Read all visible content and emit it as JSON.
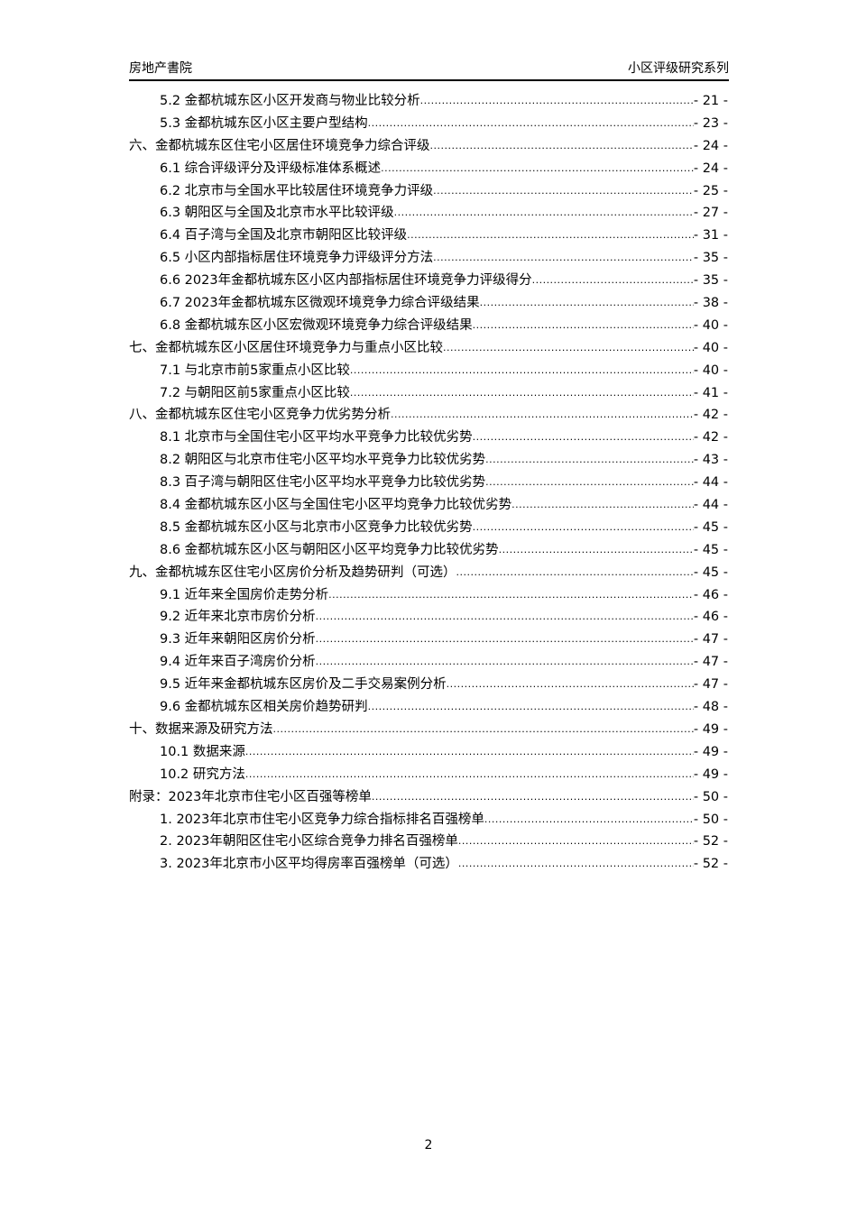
{
  "header": {
    "left": "房地产書院",
    "right": "小区评级研究系列"
  },
  "toc": [
    {
      "level": 1,
      "title": "5.2 金都杭城东区小区开发商与物业比较分析",
      "page": "- 21 -"
    },
    {
      "level": 1,
      "title": "5.3 金都杭城东区小区主要户型结构",
      "page": "- 23 -"
    },
    {
      "level": 0,
      "title": "六、金都杭城东区住宅小区居住环境竞争力综合评级",
      "page": "- 24 -"
    },
    {
      "level": 1,
      "title": "6.1 综合评级评分及评级标准体系概述",
      "page": "- 24 -"
    },
    {
      "level": 1,
      "title": "6.2 北京市与全国水平比较居住环境竞争力评级",
      "page": "- 25 -"
    },
    {
      "level": 1,
      "title": "6.3 朝阳区与全国及北京市水平比较评级",
      "page": "- 27 -"
    },
    {
      "level": 1,
      "title": "6.4 百子湾与全国及北京市朝阳区比较评级",
      "page": "- 31 -"
    },
    {
      "level": 1,
      "title": "6.5 小区内部指标居住环境竞争力评级评分方法",
      "page": "- 35 -"
    },
    {
      "level": 1,
      "title": "6.6 2023年金都杭城东区小区内部指标居住环境竞争力评级得分",
      "page": "- 35 -"
    },
    {
      "level": 1,
      "title": "6.7 2023年金都杭城东区微观环境竞争力综合评级结果",
      "page": "- 38 -"
    },
    {
      "level": 1,
      "title": "6.8 金都杭城东区小区宏微观环境竞争力综合评级结果",
      "page": "- 40 -"
    },
    {
      "level": 0,
      "title": "七、金都杭城东区小区居住环境竞争力与重点小区比较",
      "page": "- 40 -"
    },
    {
      "level": 1,
      "title": "7.1 与北京市前5家重点小区比较",
      "page": "- 40 -"
    },
    {
      "level": 1,
      "title": "7.2 与朝阳区前5家重点小区比较",
      "page": "- 41 -"
    },
    {
      "level": 0,
      "title": "八、金都杭城东区住宅小区竞争力优劣势分析",
      "page": "- 42 -"
    },
    {
      "level": 1,
      "title": "8.1 北京市与全国住宅小区平均水平竞争力比较优劣势",
      "page": "- 42 -"
    },
    {
      "level": 1,
      "title": "8.2 朝阳区与北京市住宅小区平均水平竞争力比较优劣势",
      "page": "- 43 -"
    },
    {
      "level": 1,
      "title": "8.3 百子湾与朝阳区住宅小区平均水平竞争力比较优劣势",
      "page": "- 44 -"
    },
    {
      "level": 1,
      "title": "8.4 金都杭城东区小区与全国住宅小区平均竞争力比较优劣势",
      "page": "- 44 -"
    },
    {
      "level": 1,
      "title": "8.5 金都杭城东区小区与北京市小区竞争力比较优劣势",
      "page": "- 45 -"
    },
    {
      "level": 1,
      "title": "8.6 金都杭城东区小区与朝阳区小区平均竞争力比较优劣势",
      "page": "- 45 -"
    },
    {
      "level": 0,
      "title": "九、金都杭城东区住宅小区房价分析及趋势研判（可选）",
      "page": "- 45 -"
    },
    {
      "level": 1,
      "title": "9.1 近年来全国房价走势分析",
      "page": "- 46 -"
    },
    {
      "level": 1,
      "title": "9.2 近年来北京市房价分析",
      "page": "- 46 -"
    },
    {
      "level": 1,
      "title": "9.3 近年来朝阳区房价分析",
      "page": "- 47 -"
    },
    {
      "level": 1,
      "title": "9.4 近年来百子湾房价分析",
      "page": "- 47 -"
    },
    {
      "level": 1,
      "title": "9.5 近年来金都杭城东区房价及二手交易案例分析",
      "page": "- 47 -"
    },
    {
      "level": 1,
      "title": "9.6 金都杭城东区相关房价趋势研判",
      "page": "- 48 -"
    },
    {
      "level": 0,
      "title": "十、数据来源及研究方法",
      "page": "- 49 -"
    },
    {
      "level": 1,
      "title": "10.1 数据来源",
      "page": "- 49 -"
    },
    {
      "level": 1,
      "title": "10.2 研究方法",
      "page": "- 49 -"
    },
    {
      "level": 0,
      "title": "附录：2023年北京市住宅小区百强等榜单",
      "page": "- 50 -"
    },
    {
      "level": 1,
      "title": "1. 2023年北京市住宅小区竞争力综合指标排名百强榜单",
      "page": "- 50 -"
    },
    {
      "level": 1,
      "title": "2. 2023年朝阳区住宅小区综合竞争力排名百强榜单",
      "page": "- 52 -"
    },
    {
      "level": 1,
      "title": "3. 2023年北京市小区平均得房率百强榜单（可选）",
      "page": "- 52 -"
    }
  ],
  "footer": {
    "page_number": "2"
  }
}
